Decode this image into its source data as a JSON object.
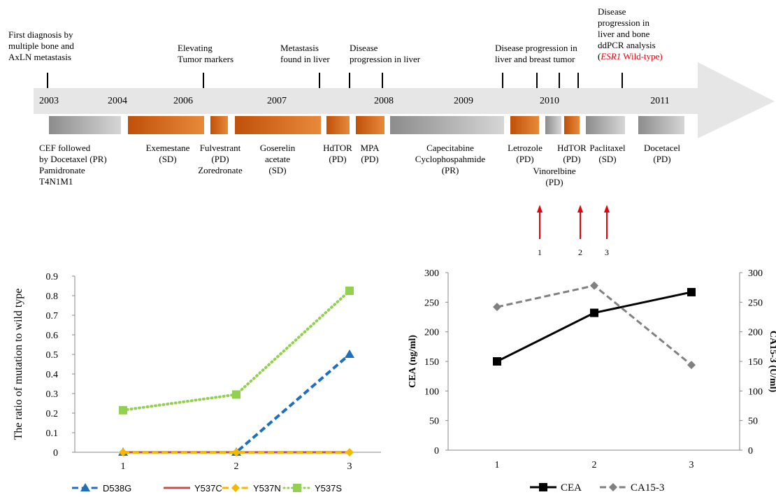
{
  "timeline": {
    "years": [
      "2003",
      "2004",
      "2006",
      "2007",
      "2008",
      "2009",
      "2010",
      "2011"
    ],
    "events": [
      {
        "lines": [
          "First diagnosis by",
          "multiple bone and",
          "AxLN metastasis"
        ]
      },
      {
        "lines": [
          "Elevating",
          "Tumor markers"
        ]
      },
      {
        "lines": [
          "Metastasis",
          "found in liver"
        ]
      },
      {
        "lines": [
          "Disease",
          "progression in liver"
        ]
      },
      {
        "lines": [
          "Disease progression in",
          "liver and breast tumor"
        ]
      },
      {
        "lines": [
          "Disease",
          "progression in",
          "liver and bone",
          "ddPCR analysis"
        ],
        "highlight_prefix": "(",
        "highlight": "ESR1",
        "highlight_suffix": " Wild-type)"
      }
    ],
    "treatments": [
      {
        "lines": [
          "CEF followed",
          "by Docetaxel (PR)",
          "Pamidronate",
          "T4N1M1"
        ],
        "style": "gray"
      },
      {
        "lines": [
          "Exemestane",
          "(SD)"
        ],
        "style": "orange"
      },
      {
        "lines": [
          "Fulvestrant",
          "(PD)",
          "Zoredronate"
        ],
        "style": "orange"
      },
      {
        "lines": [
          "Goserelin",
          "acetate",
          "(SD)"
        ],
        "style": "orange"
      },
      {
        "lines": [
          "HdTOR",
          "(PD)"
        ],
        "style": "orange"
      },
      {
        "lines": [
          "MPA",
          "(PD)"
        ],
        "style": "orange"
      },
      {
        "lines": [
          "Capecitabine",
          "Cyclophospahmide",
          "(PR)"
        ],
        "style": "gray"
      },
      {
        "lines": [
          "Letrozole",
          "(PD)"
        ],
        "style": "orange"
      },
      {
        "lines": [
          "Vinorelbine",
          "(PD)"
        ],
        "style": "gray"
      },
      {
        "lines": [
          "HdTOR",
          "(PD)"
        ],
        "style": "orange"
      },
      {
        "lines": [
          "Paclitaxel",
          "(SD)"
        ],
        "style": "gray"
      },
      {
        "lines": [
          "Docetacel",
          "(PD)"
        ],
        "style": "gray"
      }
    ],
    "sample_points": [
      "1",
      "2",
      "3"
    ],
    "colors": {
      "arrow": "#e6e6e6",
      "orange": "#c0500a",
      "gray": "#9a9a9a",
      "red": "#e8000b",
      "highlight": "#e8000b"
    }
  },
  "chart_data": [
    {
      "type": "line",
      "title": "",
      "xlabel": "",
      "ylabel": "The ratio of mutation to wild type",
      "x": [
        "1",
        "2",
        "3"
      ],
      "ylim": [
        0,
        0.9
      ],
      "yticks": [
        "0",
        "0.1",
        "0.2",
        "0.3",
        "0.4",
        "0.5",
        "0.6",
        "0.7",
        "0.8",
        "0.9"
      ],
      "legend_position": "bottom",
      "series": [
        {
          "name": "D538G",
          "values": [
            0,
            0,
            0.5
          ],
          "color": "#1f6fbf",
          "dash": "dashed",
          "marker": "triangle"
        },
        {
          "name": "Y537C",
          "values": [
            0,
            0,
            0
          ],
          "color": "#c0504d",
          "dash": "solid",
          "marker": "none"
        },
        {
          "name": "Y537N",
          "values": [
            0,
            0,
            0
          ],
          "color": "#f5b800",
          "dash": "dashed",
          "marker": "diamond"
        },
        {
          "name": "Y537S",
          "values": [
            0.215,
            0.295,
            0.825
          ],
          "color": "#92d050",
          "dash": "dotted",
          "marker": "square"
        }
      ]
    },
    {
      "type": "line",
      "title": "",
      "xlabel": "",
      "ylabel": "CEA (ng/ml)",
      "ylabel_right": "CA15-3 (U/ml)",
      "x": [
        "1",
        "2",
        "3"
      ],
      "ylim": [
        0,
        300
      ],
      "yticks": [
        "0",
        "50",
        "100",
        "150",
        "200",
        "250",
        "300"
      ],
      "legend_position": "bottom",
      "series": [
        {
          "name": "CEA",
          "values": [
            150,
            232,
            267
          ],
          "color": "#000000",
          "dash": "solid",
          "marker": "square",
          "axis": "left"
        },
        {
          "name": "CA15-3",
          "values": [
            242,
            278,
            144
          ],
          "color": "#808080",
          "dash": "dashed",
          "marker": "diamond",
          "axis": "right"
        }
      ]
    }
  ]
}
